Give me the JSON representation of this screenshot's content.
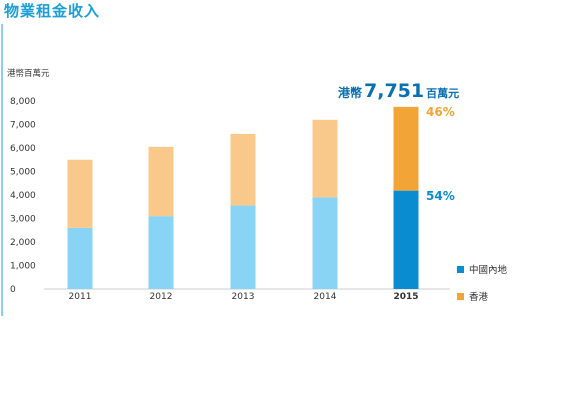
{
  "title": "物業租金收入",
  "chart_data": {
    "type": "bar",
    "stacked": true,
    "ylabel": "港幣百萬元",
    "ylim": [
      0,
      8000
    ],
    "yticks": [
      "0",
      "1,000",
      "2,000",
      "3,000",
      "4,000",
      "5,000",
      "6,000",
      "7,000",
      "8,000"
    ],
    "categories": [
      "2011",
      "2012",
      "2013",
      "2014",
      "2015"
    ],
    "highlight_category": "2015",
    "series": [
      {
        "name": "中國內地",
        "values": [
          2600,
          3100,
          3550,
          3900,
          4186
        ],
        "color": "#89d4f5",
        "highlight_color": "#0a8dd0"
      },
      {
        "name": "香港",
        "values": [
          2900,
          2950,
          3050,
          3300,
          3565
        ],
        "color": "#f8c98a",
        "highlight_color": "#f2a436"
      }
    ],
    "annotations": {
      "total_prefix": "港幣",
      "total_value": "7,751",
      "total_suffix": "百萬元",
      "pct_hk": "46%",
      "pct_mainland": "54%"
    },
    "legend": [
      {
        "label": "中國內地",
        "color": "#0a8dd0"
      },
      {
        "label": "香港",
        "color": "#f2a436"
      }
    ],
    "legend_position": "bottom-right",
    "grid": false
  }
}
